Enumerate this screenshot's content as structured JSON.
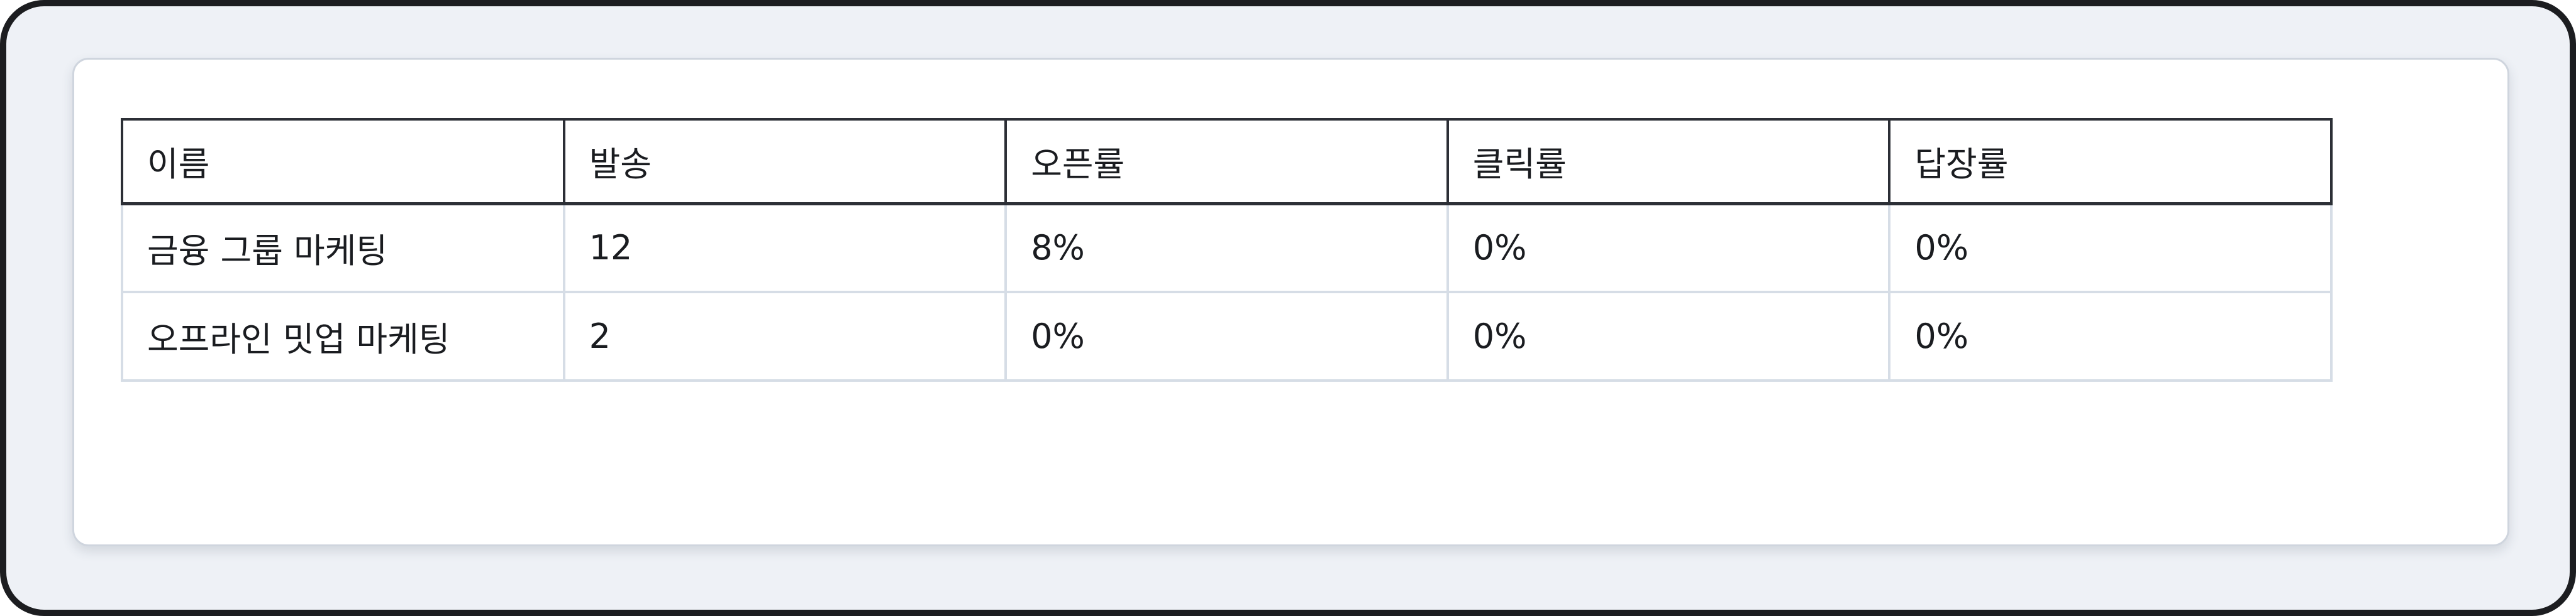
{
  "table": {
    "headers": [
      "이름",
      "발송",
      "오픈률",
      "클릭률",
      "답장률"
    ],
    "rows": [
      [
        "금융 그룹 마케팅",
        "12",
        "8%",
        "0%",
        "0%"
      ],
      [
        "오프라인 밋업 마케팅",
        "2",
        "0%",
        "0%",
        "0%"
      ]
    ]
  },
  "colors": {
    "frame_background": "#eef1f6",
    "card_background": "#ffffff",
    "header_border": "#2c2f36",
    "cell_border": "#d6dde6",
    "text": "#1a1c20"
  }
}
